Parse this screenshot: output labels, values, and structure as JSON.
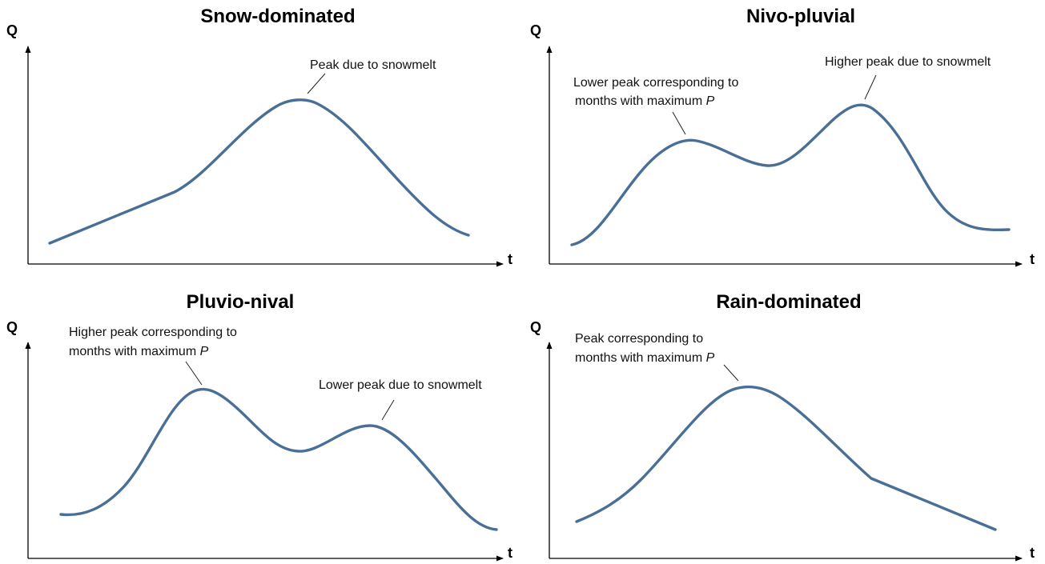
{
  "panels": {
    "snow": {
      "title": "Snow-dominated",
      "y_label": "Q",
      "x_label": "t",
      "annotation": "Peak due to snowmelt"
    },
    "nivo": {
      "title": "Nivo-pluvial",
      "y_label": "Q",
      "x_label": "t",
      "annotation_lower_line1": "Lower peak corresponding to",
      "annotation_lower_line2": "months with maximum ",
      "annotation_lower_var": "P",
      "annotation_higher": "Higher peak due to snowmelt"
    },
    "pluvio": {
      "title": "Pluvio-nival",
      "y_label": "Q",
      "x_label": "t",
      "annotation_higher_line1": "Higher peak corresponding to",
      "annotation_higher_line2": "months with maximum ",
      "annotation_higher_var": "P",
      "annotation_lower": "Lower peak due to snowmelt"
    },
    "rain": {
      "title": "Rain-dominated",
      "y_label": "Q",
      "x_label": "t",
      "annotation_line1": "Peak corresponding to",
      "annotation_line2": "months with maximum ",
      "annotation_var": "P"
    }
  },
  "colors": {
    "curve": "#4a6f96",
    "axis": "#000000"
  }
}
